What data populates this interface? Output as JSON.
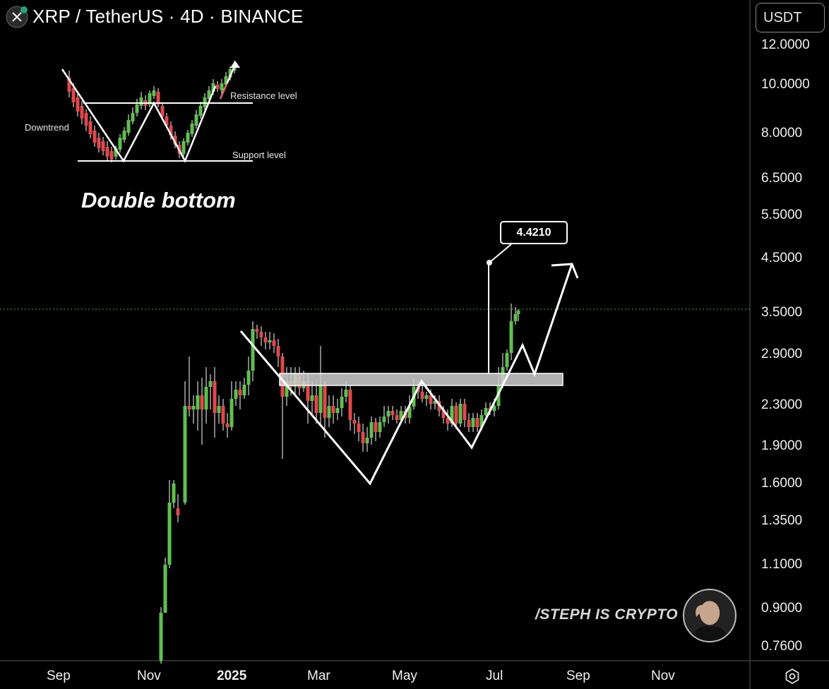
{
  "header": {
    "title": "XRP / TetherUS · 4D · BINANCE",
    "logo_icon": "xrp-logo-icon",
    "currency_button": "USDT"
  },
  "price_axis": {
    "labels": [
      "12.0000",
      "10.0000",
      "8.0000",
      "6.5000",
      "5.5000",
      "4.5000",
      "3.5000",
      "2.9000",
      "2.3000",
      "1.9000",
      "1.6000",
      "1.3500",
      "1.1000",
      "0.9000",
      "0.7600"
    ],
    "scale": "log"
  },
  "time_axis": {
    "labels": [
      "Sep",
      "Nov",
      "2025",
      "Mar",
      "May",
      "Jul",
      "Sep",
      "Nov"
    ],
    "bold_label": "2025",
    "settings_icon": "gear-icon"
  },
  "inset": {
    "title": "Double bottom",
    "downtrend_label": "Downtrend",
    "resistance_label": "Resistance level",
    "support_label": "Support level"
  },
  "annotations": {
    "target_price": "4.4210",
    "last_price_dotted_line": 3.55
  },
  "watermark": {
    "text": "/STEPH IS CRYPTO"
  },
  "colors": {
    "up": "#5fbf4f",
    "down": "#e0484c",
    "background": "#000000",
    "zone": "#c8c8c8",
    "last_price_line": "#3b8a3b"
  }
}
